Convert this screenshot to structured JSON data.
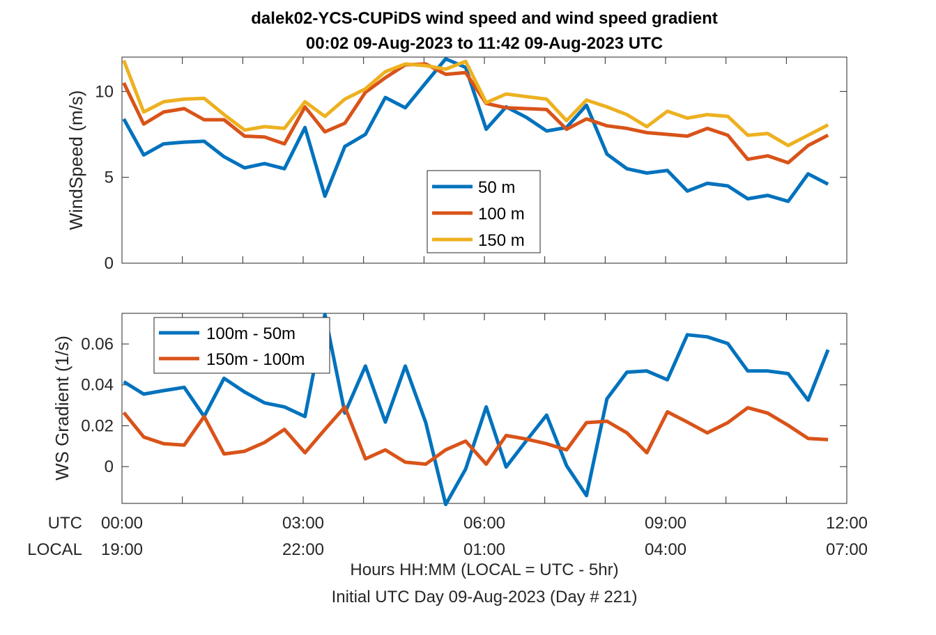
{
  "title": {
    "line1": "dalek02-YCS-CUPiDS  wind speed and wind speed gradient",
    "line2": "00:02 09-Aug-2023 to 11:42 09-Aug-2023  UTC"
  },
  "x_axis": {
    "utc_label": "UTC",
    "local_label": "LOCAL",
    "utc_ticks": [
      "00:00",
      "03:00",
      "06:00",
      "09:00",
      "12:00"
    ],
    "local_ticks": [
      "19:00",
      "22:00",
      "01:00",
      "04:00",
      "07:00"
    ],
    "tick_hours": [
      0,
      3,
      6,
      9,
      12
    ],
    "range_hours": [
      0,
      12
    ],
    "xlabel": "Hours HH:MM  (LOCAL = UTC - 5hr)",
    "footnote": "Initial UTC Day 09-Aug-2023 (Day # 221)"
  },
  "chart_data": [
    {
      "type": "line",
      "ylabel": "WindSpeed (m/s)",
      "ylim": [
        0,
        12
      ],
      "yticks": [
        0,
        5,
        10
      ],
      "ytick_labels": [
        "0",
        "5",
        "10"
      ],
      "legend_position": "center",
      "x": [
        0.03,
        0.36,
        0.69,
        1.03,
        1.36,
        1.69,
        2.03,
        2.36,
        2.69,
        3.03,
        3.36,
        3.69,
        4.03,
        4.36,
        4.69,
        5.03,
        5.36,
        5.69,
        6.03,
        6.36,
        6.69,
        7.03,
        7.36,
        7.69,
        8.03,
        8.36,
        8.69,
        9.03,
        9.36,
        9.69,
        10.03,
        10.36,
        10.69,
        11.03,
        11.36,
        11.69
      ],
      "series": [
        {
          "name": "50 m",
          "color": "#0072BD",
          "values": [
            8.4,
            6.3,
            6.95,
            7.05,
            7.1,
            6.2,
            5.55,
            5.8,
            5.5,
            7.9,
            3.9,
            6.8,
            7.5,
            9.65,
            9.05,
            10.5,
            11.9,
            11.4,
            7.8,
            9.1,
            8.5,
            7.7,
            7.9,
            9.2,
            6.35,
            5.5,
            5.25,
            5.4,
            4.2,
            4.65,
            4.5,
            3.75,
            3.95,
            3.6,
            5.2,
            4.6
          ]
        },
        {
          "name": "100 m",
          "color": "#D95319",
          "values": [
            10.5,
            8.1,
            8.8,
            9.0,
            8.35,
            8.35,
            7.4,
            7.35,
            6.95,
            9.1,
            7.65,
            8.15,
            9.95,
            10.8,
            11.55,
            11.6,
            11.0,
            11.1,
            9.3,
            9.05,
            9.0,
            8.95,
            7.8,
            8.4,
            8.0,
            7.85,
            7.6,
            7.5,
            7.4,
            7.85,
            7.45,
            6.05,
            6.25,
            5.85,
            6.85,
            7.45
          ]
        },
        {
          "name": "150 m",
          "color": "#EDB120",
          "values": [
            11.8,
            8.8,
            9.4,
            9.55,
            9.6,
            8.65,
            7.75,
            7.95,
            7.85,
            9.4,
            8.55,
            9.55,
            10.15,
            11.15,
            11.6,
            11.5,
            11.3,
            11.75,
            9.35,
            9.85,
            9.7,
            9.55,
            8.3,
            9.5,
            9.1,
            8.65,
            7.95,
            8.85,
            8.45,
            8.65,
            8.55,
            7.45,
            7.55,
            6.85,
            7.45,
            8.05
          ]
        }
      ]
    },
    {
      "type": "line",
      "ylabel": "WS Gradient (1/s)",
      "ylim": [
        -0.018,
        0.075
      ],
      "yticks": [
        0,
        0.02,
        0.04,
        0.06
      ],
      "ytick_labels": [
        "0",
        "0.02",
        "0.04",
        "0.06"
      ],
      "legend_position": "top-left",
      "x": [
        0.03,
        0.36,
        0.69,
        1.03,
        1.36,
        1.69,
        2.03,
        2.36,
        2.69,
        3.03,
        3.36,
        3.69,
        4.03,
        4.36,
        4.69,
        5.03,
        5.36,
        5.69,
        6.03,
        6.36,
        6.69,
        7.03,
        7.36,
        7.69,
        8.03,
        8.36,
        8.69,
        9.03,
        9.36,
        9.69,
        10.03,
        10.36,
        10.69,
        11.03,
        11.36,
        11.69
      ],
      "series": [
        {
          "name": "100m - 50m",
          "color": "#0072BD",
          "values": [
            0.0415,
            0.0355,
            0.0372,
            0.0388,
            0.0245,
            0.0432,
            0.0365,
            0.0312,
            0.0292,
            0.0245,
            0.0745,
            0.0262,
            0.0492,
            0.0218,
            0.0492,
            0.0215,
            -0.0185,
            -0.0012,
            0.0292,
            -0.0002,
            0.0125,
            0.0252,
            0.0005,
            -0.0142,
            0.0332,
            0.0462,
            0.0468,
            0.0425,
            0.0645,
            0.0635,
            0.0602,
            0.0468,
            0.0468,
            0.0455,
            0.0325,
            0.0572
          ]
        },
        {
          "name": "150m - 100m",
          "color": "#D95319",
          "values": [
            0.0265,
            0.0145,
            0.0112,
            0.0105,
            0.0245,
            0.0062,
            0.0075,
            0.0118,
            0.0182,
            0.0068,
            0.0182,
            0.0292,
            0.0038,
            0.0082,
            0.0022,
            0.0012,
            0.0082,
            0.0125,
            0.0012,
            0.0152,
            0.0135,
            0.0112,
            0.0082,
            0.0215,
            0.0222,
            0.0165,
            0.0068,
            0.0268,
            0.0218,
            0.0165,
            0.0215,
            0.0288,
            0.0262,
            0.0202,
            0.0138,
            0.0132
          ]
        }
      ]
    }
  ]
}
